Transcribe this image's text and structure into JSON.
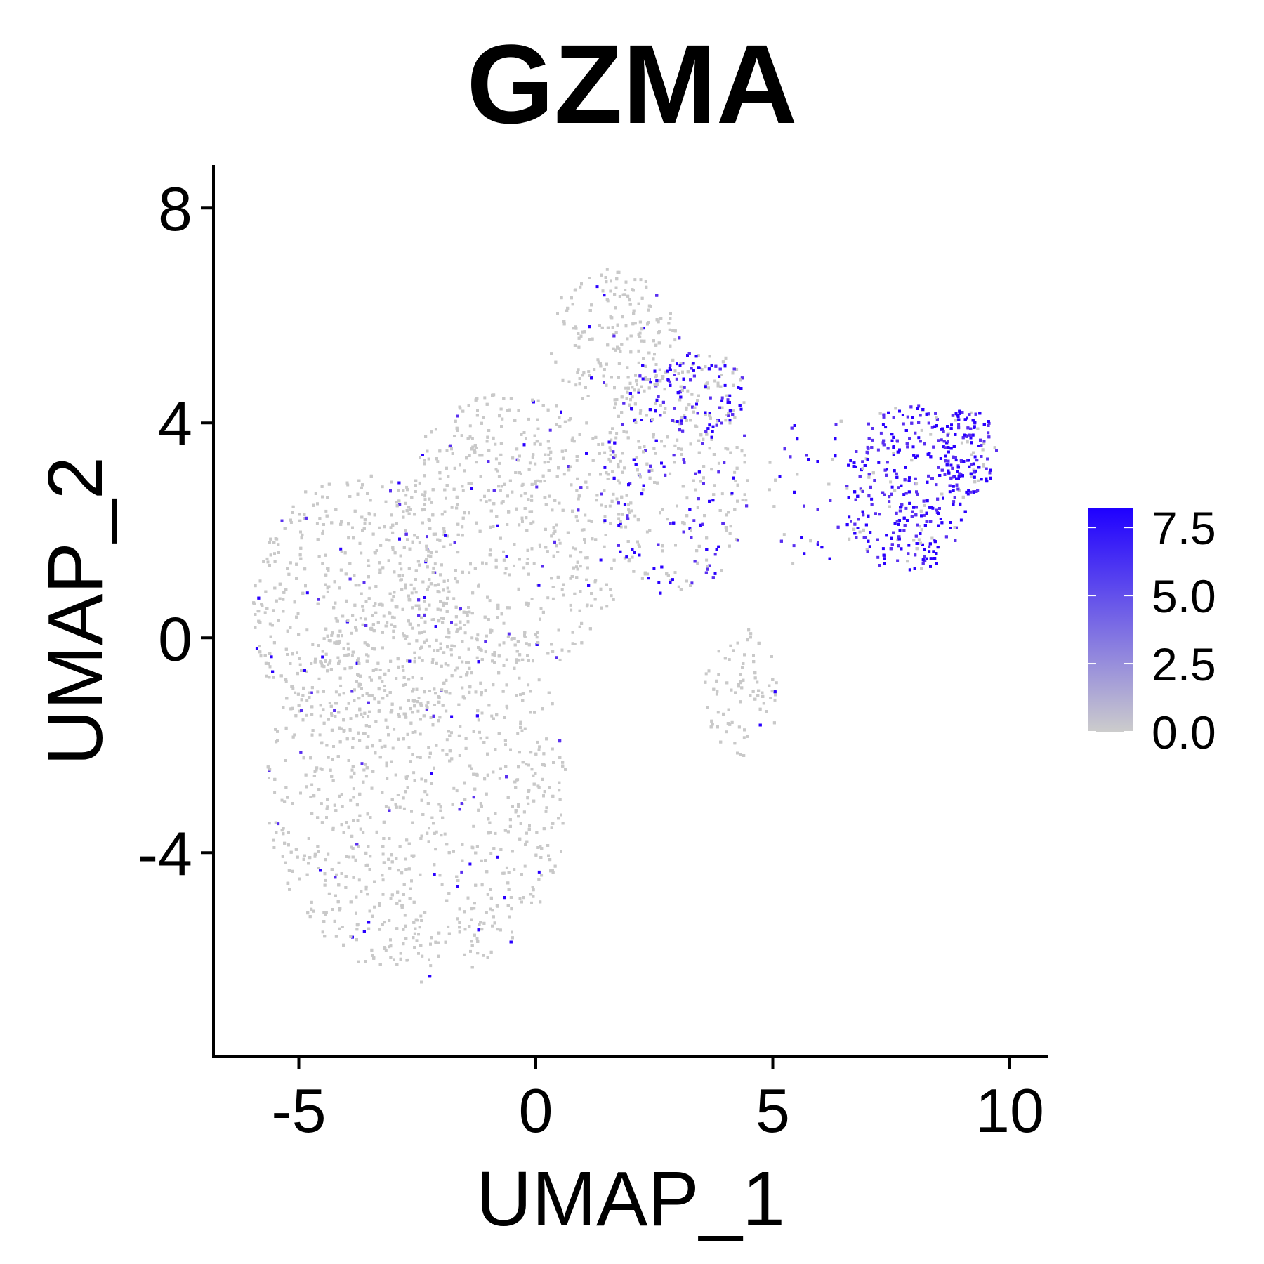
{
  "chart_data": {
    "type": "scatter",
    "title": "GZMA",
    "xlabel": "UMAP_1",
    "ylabel": "UMAP_2",
    "xlim": [
      -6.8,
      10.8
    ],
    "ylim": [
      -7.8,
      8.8
    ],
    "x_ticks": [
      -5,
      0,
      5,
      10
    ],
    "x_tick_labels": [
      "-5",
      "0",
      "5",
      "10"
    ],
    "y_ticks": [
      -4,
      0,
      4,
      8
    ],
    "y_tick_labels": [
      "-4",
      "0",
      "4",
      "8"
    ],
    "grid": false,
    "legend": {
      "placement": "right",
      "type": "colorbar",
      "range": [
        0,
        8.2
      ],
      "ticks": [
        0,
        2.5,
        5,
        7.5
      ],
      "tick_labels": [
        "0.0",
        "2.5",
        "5.0",
        "7.5"
      ],
      "colors": {
        "low": "#cccccc",
        "high": "#1f00ff"
      }
    },
    "background_point_color": "#c9c9c9",
    "description_regions": {
      "main_cluster": {
        "x_range": [
          -5.8,
          4.8
        ],
        "y_range": [
          -6.5,
          7.0
        ],
        "expression": "mostly 0, sparse high"
      },
      "right_cluster": {
        "x_range": [
          6.3,
          9.6
        ],
        "y_range": [
          0.3,
          4.6
        ],
        "expression": "high"
      }
    }
  }
}
